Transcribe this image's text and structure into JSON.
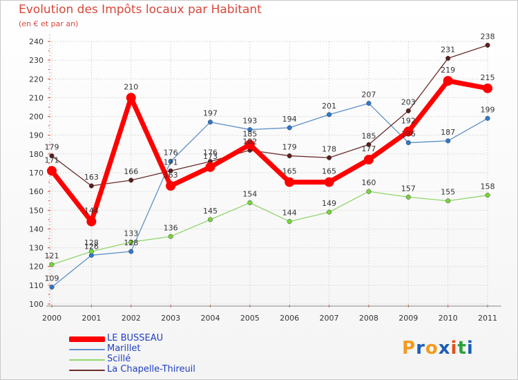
{
  "title": "Evolution des Impôts locaux par Habitant",
  "subtitle": "(en € et par an)",
  "logo": {
    "letters": [
      "P",
      "r",
      "o",
      "x",
      "i",
      "t",
      "i"
    ],
    "colors": [
      "#f29b1d",
      "#1b5fb5",
      "#f29b1d",
      "#1b5fb5",
      "#e54e1b",
      "#2aa139",
      "#1b5fb5"
    ]
  },
  "chart_data": {
    "type": "line",
    "title": "Evolution des Impôts locaux par Habitant",
    "subtitle": "(en € et par an)",
    "xlabel": "",
    "ylabel": "",
    "x": [
      "2000",
      "2001",
      "2002",
      "2003",
      "2004",
      "2005",
      "2006",
      "2007",
      "2008",
      "2009",
      "2010",
      "2011"
    ],
    "ylim": [
      100,
      240
    ],
    "yticks": [
      100,
      110,
      120,
      130,
      140,
      150,
      160,
      170,
      180,
      190,
      200,
      210,
      220,
      230,
      240
    ],
    "grid": true,
    "legend_position": "bottom-left",
    "series": [
      {
        "name": "Marillet",
        "color": "#5b8fc8",
        "marker": "#2f77c9",
        "values": [
          109,
          126,
          128,
          176,
          197,
          193,
          194,
          201,
          207,
          186,
          187,
          199
        ],
        "labels": [
          "109",
          "126",
          "128",
          "176",
          "197",
          "193",
          "194",
          "201",
          "207",
          "186",
          "187",
          "199"
        ]
      },
      {
        "name": "Scillé",
        "color": "#8fd66a",
        "marker": "#77d438",
        "values": [
          121,
          128,
          133,
          136,
          145,
          154,
          144,
          149,
          160,
          157,
          155,
          158
        ],
        "labels": [
          "121",
          "128",
          "133",
          "136",
          "145",
          "154",
          "144",
          "149",
          "160",
          "157",
          "155",
          "158"
        ]
      },
      {
        "name": "La Chapelle-Thireuil",
        "color": "#6b2b2b",
        "marker": "#5a1f1f",
        "values": [
          179,
          163,
          166,
          171,
          176,
          182,
          179,
          178,
          185,
          203,
          231,
          238
        ],
        "labels": [
          "179",
          "163",
          "166",
          "171",
          "176",
          "182",
          "179",
          "178",
          "185",
          "203",
          "231",
          "238"
        ]
      },
      {
        "name": "LE BUSSEAU",
        "color": "#ff0000",
        "marker": "#ff0000",
        "values": [
          171,
          144,
          210,
          163,
          173,
          185,
          165,
          165,
          177,
          192,
          219,
          215
        ],
        "labels": [
          "171",
          "144",
          "210",
          "163",
          "173",
          "185",
          "165",
          "165",
          "177",
          "192",
          "219",
          "215"
        ]
      }
    ],
    "legend": [
      "LE BUSSEAU",
      "Marillet",
      "Scillé",
      "La Chapelle-Thireuil"
    ]
  }
}
